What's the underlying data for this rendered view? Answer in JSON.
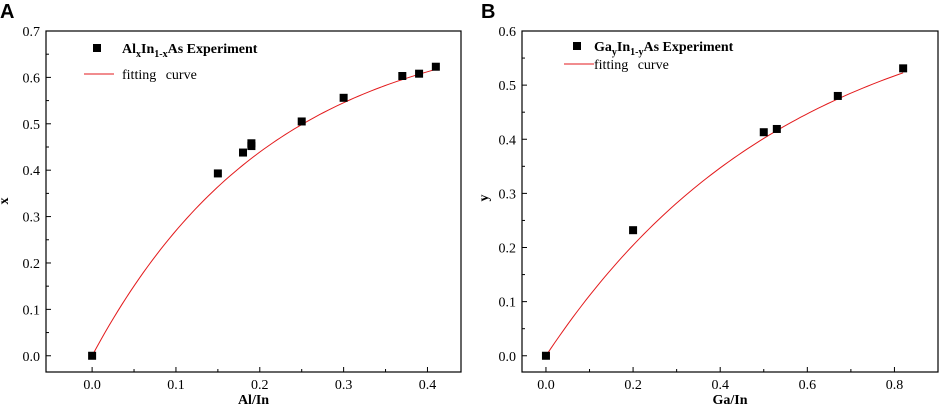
{
  "chart_data": [
    {
      "panel": "A",
      "type": "scatter",
      "xlabel": "Al/In",
      "ylabel": "x",
      "xlim": [
        -0.055,
        0.44
      ],
      "ylim": [
        -0.035,
        0.7
      ],
      "xticks": [
        0.0,
        0.1,
        0.2,
        0.3,
        0.4
      ],
      "yticks": [
        0.0,
        0.1,
        0.2,
        0.3,
        0.4,
        0.5,
        0.6,
        0.7
      ],
      "tick_decimals": 1,
      "legend": {
        "position": "top-left",
        "marker_label": {
          "a": "Al",
          "a_sub": "x",
          "b": "In",
          "b_sub": "1-x",
          "c": "As Experiment"
        },
        "curve_label": "fitting curve"
      },
      "series": [
        {
          "name": "AlxIn1-xAs Experiment",
          "kind": "points",
          "color": "#000000",
          "x": [
            0.0,
            0.15,
            0.18,
            0.19,
            0.19,
            0.25,
            0.3,
            0.37,
            0.39,
            0.41
          ],
          "y": [
            0.0,
            0.393,
            0.438,
            0.452,
            0.458,
            0.505,
            0.556,
            0.603,
            0.608,
            0.623
          ]
        },
        {
          "name": "fitting curve",
          "kind": "curve",
          "color": "#e31a1c",
          "model": {
            "form": "A*(1-exp(-x/t))",
            "A": 0.725,
            "t": 0.215
          },
          "x_range": [
            0.0,
            0.41
          ]
        }
      ]
    },
    {
      "panel": "B",
      "type": "scatter",
      "xlabel": "Ga/In",
      "ylabel": "y",
      "xlim": [
        -0.055,
        0.9
      ],
      "ylim": [
        -0.03,
        0.6
      ],
      "xticks": [
        0.0,
        0.2,
        0.4,
        0.6,
        0.8
      ],
      "yticks": [
        0.0,
        0.1,
        0.2,
        0.3,
        0.4,
        0.5,
        0.6
      ],
      "tick_decimals": 1,
      "legend": {
        "position": "top-left",
        "marker_label": {
          "a": "Ga",
          "a_sub": "y",
          "b": "In",
          "b_sub": "1-y",
          "c": "As Experiment"
        },
        "curve_label": "fitting curve"
      },
      "series": [
        {
          "name": "GayIn1-yAs Experiment",
          "kind": "points",
          "color": "#000000",
          "x": [
            0.0,
            0.2,
            0.5,
            0.53,
            0.67,
            0.82
          ],
          "y": [
            0.0,
            0.232,
            0.413,
            0.419,
            0.48,
            0.531
          ]
        },
        {
          "name": "fitting curve",
          "kind": "curve",
          "color": "#e31a1c",
          "model": {
            "form": "A*(1-exp(-x/t))",
            "A": 0.68,
            "t": 0.56
          },
          "x_range": [
            0.0,
            0.82
          ]
        }
      ]
    }
  ]
}
